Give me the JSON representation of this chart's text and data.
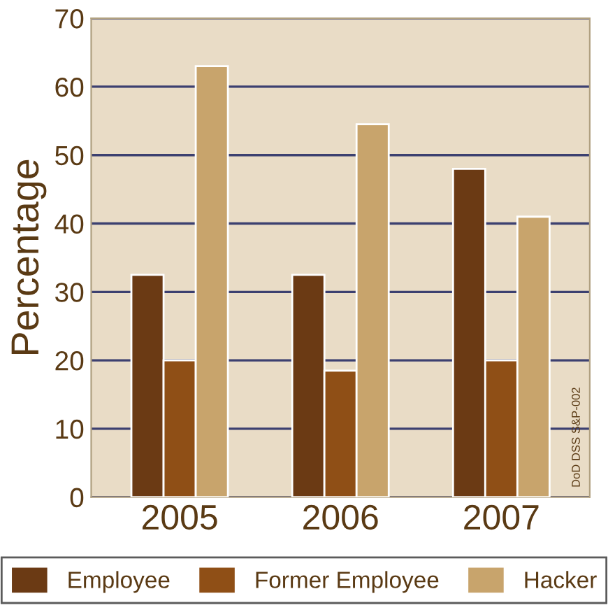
{
  "chart_data": {
    "type": "bar",
    "ylabel": "Percentage",
    "categories": [
      "2005",
      "2006",
      "2007"
    ],
    "series": [
      {
        "name": "Employee",
        "color": "#6b3a14",
        "values": [
          32.5,
          32.5,
          48
        ]
      },
      {
        "name": "Former Employee",
        "color": "#8f4f16",
        "values": [
          20,
          18.5,
          20
        ]
      },
      {
        "name": "Hacker",
        "color": "#c8a46c",
        "values": [
          63,
          54.5,
          41
        ]
      }
    ],
    "ylim": [
      0,
      70
    ],
    "yticks": [
      0,
      10,
      20,
      30,
      40,
      50,
      60,
      70
    ],
    "grid": "y",
    "legend": "bottom",
    "annotations": [
      "DoD DSS S&P-002"
    ]
  }
}
